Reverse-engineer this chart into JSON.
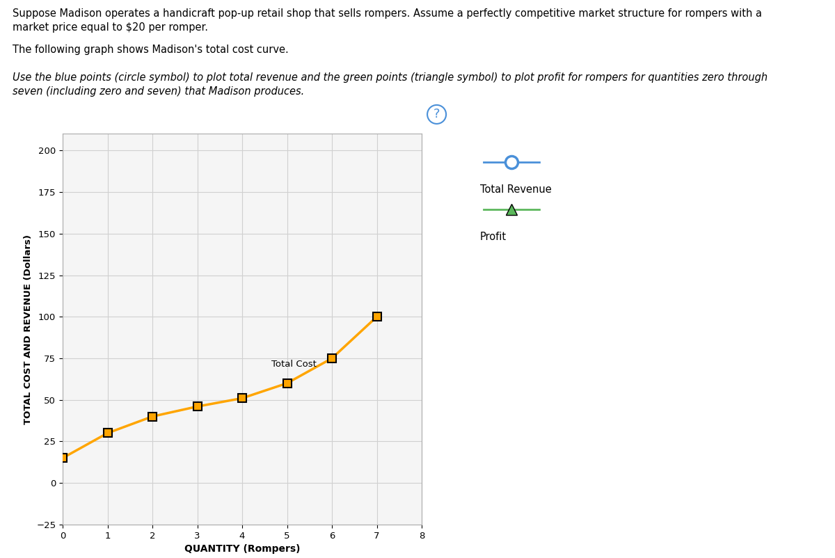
{
  "quantities": [
    0,
    1,
    2,
    3,
    4,
    5,
    6,
    7
  ],
  "total_cost": [
    15,
    30,
    40,
    46,
    51,
    60,
    75,
    100
  ],
  "price": 20,
  "tc_color": "#FFA500",
  "tc_marker": "s",
  "tr_color": "#4a90d9",
  "tr_marker": "o",
  "profit_color": "#5cb85c",
  "profit_marker": "^",
  "xlabel": "QUANTITY (Rompers)",
  "ylabel": "TOTAL COST AND REVENUE (Dollars)",
  "xlim": [
    0,
    8
  ],
  "ylim": [
    -25,
    210
  ],
  "yticks": [
    -25,
    0,
    25,
    50,
    75,
    100,
    125,
    150,
    175,
    200
  ],
  "xticks": [
    0,
    1,
    2,
    3,
    4,
    5,
    6,
    7,
    8
  ],
  "grid_color": "#d0d0d0",
  "background_color": "#ffffff",
  "plot_bg_color": "#f5f5f5",
  "tc_label": "Total Cost",
  "tr_label": "Total Revenue",
  "profit_label": "Profit",
  "line1": "Suppose Madison operates a handicraft pop-up retail shop that sells rompers. Assume a perfectly competitive market structure for rompers with a",
  "line2": "market price equal to $20 per romper.",
  "line3": "The following graph shows Madison's total cost curve.",
  "line4": "Use the blue points (circle symbol) to plot total revenue and the green points (triangle symbol) to plot profit for rompers for quantities zero through",
  "line5": "seven (including zero and seven) that Madison produces."
}
